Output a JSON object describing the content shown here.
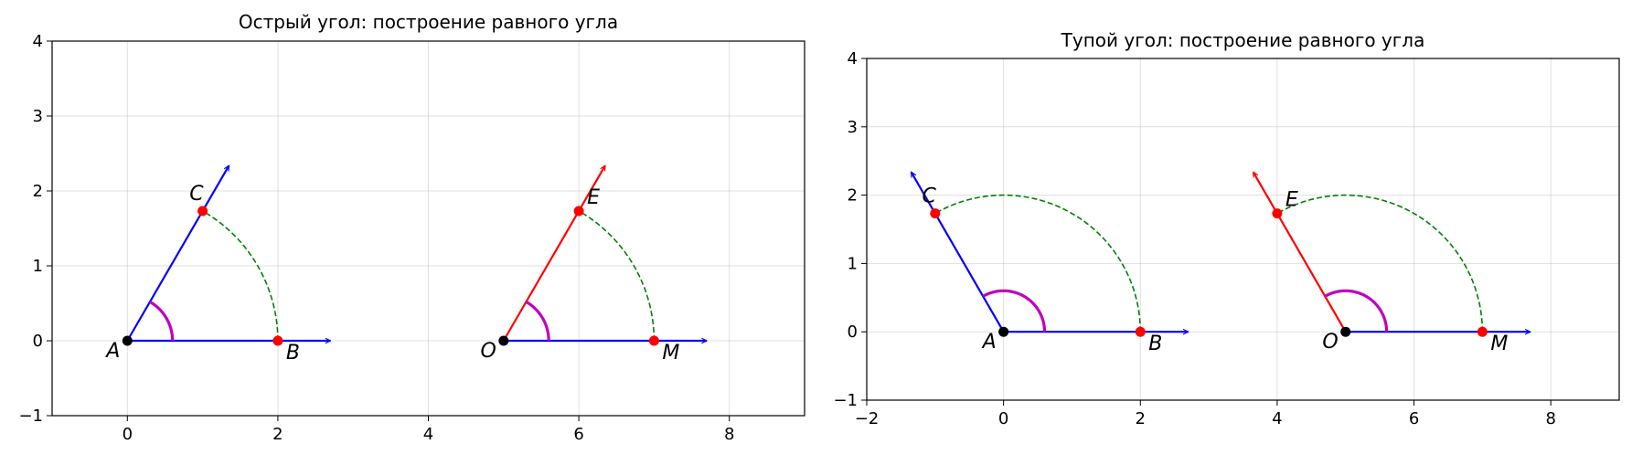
{
  "chart_data": [
    {
      "type": "line",
      "title": "Острый угол: построение равного угла",
      "xlabel": "",
      "ylabel": "",
      "xlim": [
        -1,
        9
      ],
      "ylim": [
        -1,
        4
      ],
      "xticks": [
        0,
        2,
        4,
        6,
        8
      ],
      "xtick_labels": [
        "0",
        "2",
        "4",
        "6",
        "8"
      ],
      "yticks": [
        -1,
        0,
        1,
        2,
        3,
        4
      ],
      "ytick_labels": [
        "−1",
        "0",
        "1",
        "2",
        "3",
        "4"
      ],
      "grid": true,
      "angle_degrees": 60,
      "series": [
        {
          "role": "ray",
          "color": "#0000ff",
          "x": [
            0,
            1.35
          ],
          "y": [
            0,
            2.338
          ]
        },
        {
          "role": "ray",
          "color": "#0000ff",
          "x": [
            0,
            2.7
          ],
          "y": [
            0,
            0
          ]
        },
        {
          "role": "ray",
          "color": "#ff0000",
          "x": [
            5,
            6.35
          ],
          "y": [
            0,
            2.338
          ]
        },
        {
          "role": "ray",
          "color": "#0000ff",
          "x": [
            5,
            7.7
          ],
          "y": [
            0,
            0
          ]
        },
        {
          "role": "construction-arc",
          "color": "#008000",
          "center": [
            0,
            0
          ],
          "radius": 2,
          "from_deg": 0,
          "to_deg": 60
        },
        {
          "role": "construction-arc",
          "color": "#008000",
          "center": [
            5,
            0
          ],
          "radius": 2,
          "from_deg": 0,
          "to_deg": 60
        },
        {
          "role": "angle-mark",
          "color": "#bf00bf",
          "center": [
            0,
            0
          ],
          "radius": 0.6,
          "from_deg": 0,
          "to_deg": 60
        },
        {
          "role": "angle-mark",
          "color": "#bf00bf",
          "center": [
            5,
            0
          ],
          "radius": 0.6,
          "from_deg": 0,
          "to_deg": 60
        }
      ],
      "points": [
        {
          "label": "A",
          "x": 0,
          "y": 0,
          "color": "#000000",
          "label_pos": "below-left"
        },
        {
          "label": "B",
          "x": 2,
          "y": 0,
          "color": "#ff0000",
          "label_pos": "below-right"
        },
        {
          "label": "C",
          "x": 1,
          "y": 1.732,
          "color": "#ff0000",
          "label_pos": "above-left"
        },
        {
          "label": "O",
          "x": 5,
          "y": 0,
          "color": "#000000",
          "label_pos": "below-left"
        },
        {
          "label": "M",
          "x": 7,
          "y": 0,
          "color": "#ff0000",
          "label_pos": "below-right"
        },
        {
          "label": "E",
          "x": 6,
          "y": 1.732,
          "color": "#ff0000",
          "label_pos": "right"
        }
      ]
    },
    {
      "type": "line",
      "title": "Тупой угол: построение равного угла",
      "xlabel": "",
      "ylabel": "",
      "xlim": [
        -2,
        9
      ],
      "ylim": [
        -1,
        4
      ],
      "xticks": [
        -2,
        0,
        2,
        4,
        6,
        8
      ],
      "xtick_labels": [
        "−2",
        "0",
        "2",
        "4",
        "6",
        "8"
      ],
      "yticks": [
        -1,
        0,
        1,
        2,
        3,
        4
      ],
      "ytick_labels": [
        "−1",
        "0",
        "1",
        "2",
        "3",
        "4"
      ],
      "grid": true,
      "angle_degrees": 120,
      "series": [
        {
          "role": "ray",
          "color": "#0000ff",
          "x": [
            0,
            -1.35
          ],
          "y": [
            0,
            2.338
          ]
        },
        {
          "role": "ray",
          "color": "#0000ff",
          "x": [
            0,
            2.7
          ],
          "y": [
            0,
            0
          ]
        },
        {
          "role": "ray",
          "color": "#ff0000",
          "x": [
            5,
            3.65
          ],
          "y": [
            0,
            2.338
          ]
        },
        {
          "role": "ray",
          "color": "#0000ff",
          "x": [
            5,
            7.7
          ],
          "y": [
            0,
            0
          ]
        },
        {
          "role": "construction-arc",
          "color": "#008000",
          "center": [
            0,
            0
          ],
          "radius": 2,
          "from_deg": 0,
          "to_deg": 120
        },
        {
          "role": "construction-arc",
          "color": "#008000",
          "center": [
            5,
            0
          ],
          "radius": 2,
          "from_deg": 0,
          "to_deg": 120
        },
        {
          "role": "angle-mark",
          "color": "#bf00bf",
          "center": [
            0,
            0
          ],
          "radius": 0.6,
          "from_deg": 0,
          "to_deg": 120
        },
        {
          "role": "angle-mark",
          "color": "#bf00bf",
          "center": [
            5,
            0
          ],
          "radius": 0.6,
          "from_deg": 0,
          "to_deg": 120
        }
      ],
      "points": [
        {
          "label": "A",
          "x": 0,
          "y": 0,
          "color": "#000000",
          "label_pos": "below-left"
        },
        {
          "label": "B",
          "x": 2,
          "y": 0,
          "color": "#ff0000",
          "label_pos": "below-right"
        },
        {
          "label": "C",
          "x": -1,
          "y": 1.732,
          "color": "#ff0000",
          "label_pos": "above-left"
        },
        {
          "label": "O",
          "x": 5,
          "y": 0,
          "color": "#000000",
          "label_pos": "below-left"
        },
        {
          "label": "M",
          "x": 7,
          "y": 0,
          "color": "#ff0000",
          "label_pos": "below-right"
        },
        {
          "label": "E",
          "x": 4,
          "y": 1.732,
          "color": "#ff0000",
          "label_pos": "right"
        }
      ]
    }
  ]
}
